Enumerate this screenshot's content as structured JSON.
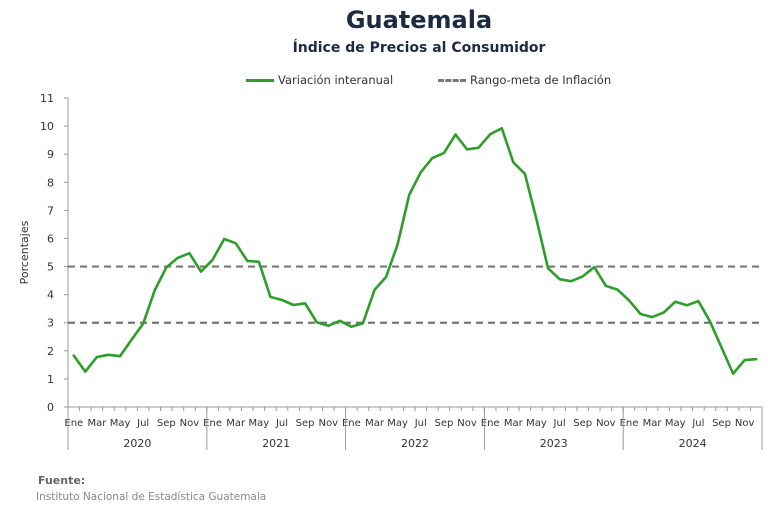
{
  "header": {
    "title": "Guatemala",
    "subtitle": "Índice de Precios al Consumidor"
  },
  "legend": {
    "actual": "Variación interanual",
    "target": "Rango-meta de Inflación"
  },
  "source": {
    "label": "Fuente:",
    "text": "Instituto Nacional de Estadística Guatemala"
  },
  "colors": {
    "line": "#2e9e2a",
    "target": "#777777",
    "axis": "#999999"
  },
  "chart_data": {
    "type": "line",
    "ylabel": "Porcentajes",
    "ylim": [
      0,
      11
    ],
    "yticks": [
      0,
      1,
      2,
      3,
      4,
      5,
      6,
      7,
      8,
      9,
      10,
      11
    ],
    "grid": false,
    "legend_position": "top",
    "month_tick_labels": [
      "Ene",
      "Mar",
      "May",
      "Jul",
      "Sep",
      "Nov"
    ],
    "years": [
      "2020",
      "2021",
      "2022",
      "2023",
      "2024"
    ],
    "target_band": [
      3,
      5
    ],
    "series": [
      {
        "name": "Variación interanual",
        "values": [
          1.83,
          1.26,
          1.78,
          1.86,
          1.81,
          2.4,
          2.97,
          4.16,
          4.97,
          5.31,
          5.47,
          4.82,
          5.24,
          5.98,
          5.83,
          5.2,
          5.17,
          3.92,
          3.81,
          3.63,
          3.69,
          3.02,
          2.89,
          3.07,
          2.86,
          2.98,
          4.17,
          4.63,
          5.79,
          7.55,
          8.36,
          8.86,
          9.04,
          9.7,
          9.17,
          9.23,
          9.71,
          9.92,
          8.71,
          8.3,
          6.68,
          4.94,
          4.55,
          4.48,
          4.65,
          4.98,
          4.31,
          4.18,
          3.8,
          3.31,
          3.2,
          3.36,
          3.75,
          3.62,
          3.77,
          3.05,
          2.12,
          1.19,
          1.67,
          1.7
        ]
      }
    ]
  }
}
